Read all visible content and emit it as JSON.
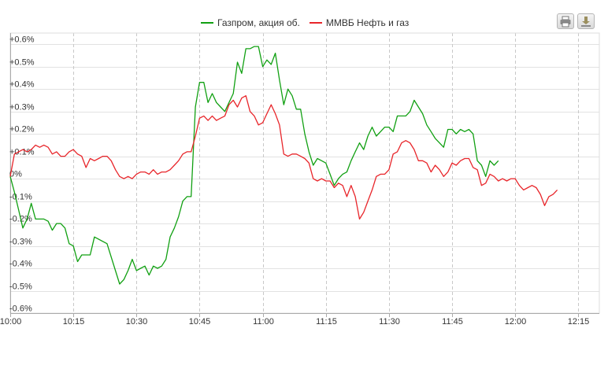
{
  "toolbar": {
    "print_icon": "printer-icon",
    "export_icon": "download-icon"
  },
  "chart_data": {
    "type": "line",
    "title": "",
    "xlabel": "",
    "ylabel": "",
    "ylim": [
      -0.6,
      0.65
    ],
    "xlim": [
      "10:00",
      "12:20"
    ],
    "grid": {
      "horizontal": true,
      "vertical_dashed": true
    },
    "legend_position": "top-center",
    "y_ticks": [
      "-0.6%",
      "-0.5%",
      "-0.4%",
      "-0.3%",
      "-0.2%",
      "-0.1%",
      "0%",
      "+0.1%",
      "+0.2%",
      "+0.3%",
      "+0.4%",
      "+0.5%",
      "+0.6%"
    ],
    "x_ticks": [
      "10:00",
      "10:15",
      "10:30",
      "10:45",
      "11:00",
      "11:15",
      "11:30",
      "11:45",
      "12:00",
      "12:15"
    ],
    "series": [
      {
        "name": "Газпром, акция об.",
        "color": "#11a012",
        "points": [
          [
            "10:00",
            0.01
          ],
          [
            "10:01",
            -0.06
          ],
          [
            "10:02",
            -0.14
          ],
          [
            "10:03",
            -0.22
          ],
          [
            "10:04",
            -0.18
          ],
          [
            "10:05",
            -0.11
          ],
          [
            "10:06",
            -0.18
          ],
          [
            "10:08",
            -0.18
          ],
          [
            "10:09",
            -0.19
          ],
          [
            "10:10",
            -0.23
          ],
          [
            "10:11",
            -0.2
          ],
          [
            "10:12",
            -0.2
          ],
          [
            "10:13",
            -0.22
          ],
          [
            "10:14",
            -0.29
          ],
          [
            "10:15",
            -0.3
          ],
          [
            "10:16",
            -0.37
          ],
          [
            "10:17",
            -0.34
          ],
          [
            "10:19",
            -0.34
          ],
          [
            "10:20",
            -0.26
          ],
          [
            "10:23",
            -0.29
          ],
          [
            "10:26",
            -0.47
          ],
          [
            "10:27",
            -0.45
          ],
          [
            "10:28",
            -0.41
          ],
          [
            "10:29",
            -0.36
          ],
          [
            "10:30",
            -0.41
          ],
          [
            "10:31",
            -0.4
          ],
          [
            "10:32",
            -0.39
          ],
          [
            "10:33",
            -0.43
          ],
          [
            "10:34",
            -0.39
          ],
          [
            "10:35",
            -0.4
          ],
          [
            "10:36",
            -0.39
          ],
          [
            "10:37",
            -0.36
          ],
          [
            "10:38",
            -0.26
          ],
          [
            "10:39",
            -0.22
          ],
          [
            "10:40",
            -0.17
          ],
          [
            "10:41",
            -0.1
          ],
          [
            "10:42",
            -0.08
          ],
          [
            "10:43",
            -0.08
          ],
          [
            "10:44",
            0.32
          ],
          [
            "10:45",
            0.43
          ],
          [
            "10:46",
            0.43
          ],
          [
            "10:47",
            0.34
          ],
          [
            "10:48",
            0.38
          ],
          [
            "10:49",
            0.34
          ],
          [
            "10:50",
            0.32
          ],
          [
            "10:51",
            0.3
          ],
          [
            "10:52",
            0.34
          ],
          [
            "10:53",
            0.38
          ],
          [
            "10:54",
            0.52
          ],
          [
            "10:55",
            0.47
          ],
          [
            "10:56",
            0.58
          ],
          [
            "10:57",
            0.58
          ],
          [
            "10:58",
            0.59
          ],
          [
            "10:59",
            0.59
          ],
          [
            "11:00",
            0.5
          ],
          [
            "11:01",
            0.53
          ],
          [
            "11:02",
            0.51
          ],
          [
            "11:03",
            0.56
          ],
          [
            "11:04",
            0.44
          ],
          [
            "11:05",
            0.33
          ],
          [
            "11:06",
            0.4
          ],
          [
            "11:07",
            0.37
          ],
          [
            "11:08",
            0.31
          ],
          [
            "11:09",
            0.31
          ],
          [
            "11:10",
            0.2
          ],
          [
            "11:11",
            0.12
          ],
          [
            "11:12",
            0.06
          ],
          [
            "11:13",
            0.09
          ],
          [
            "11:14",
            0.08
          ],
          [
            "11:15",
            0.07
          ],
          [
            "11:16",
            0.02
          ],
          [
            "11:17",
            -0.03
          ],
          [
            "11:18",
            0.0
          ],
          [
            "11:19",
            0.02
          ],
          [
            "11:20",
            0.03
          ],
          [
            "11:21",
            0.08
          ],
          [
            "11:22",
            0.12
          ],
          [
            "11:23",
            0.16
          ],
          [
            "11:24",
            0.13
          ],
          [
            "11:25",
            0.19
          ],
          [
            "11:26",
            0.23
          ],
          [
            "11:27",
            0.19
          ],
          [
            "11:28",
            0.21
          ],
          [
            "11:29",
            0.23
          ],
          [
            "11:30",
            0.23
          ],
          [
            "11:31",
            0.21
          ],
          [
            "11:32",
            0.28
          ],
          [
            "11:33",
            0.28
          ],
          [
            "11:34",
            0.28
          ],
          [
            "11:35",
            0.3
          ],
          [
            "11:36",
            0.35
          ],
          [
            "11:37",
            0.32
          ],
          [
            "11:38",
            0.29
          ],
          [
            "11:39",
            0.24
          ],
          [
            "11:40",
            0.21
          ],
          [
            "11:41",
            0.18
          ],
          [
            "11:42",
            0.16
          ],
          [
            "11:43",
            0.14
          ],
          [
            "11:44",
            0.22
          ],
          [
            "11:45",
            0.22
          ],
          [
            "11:46",
            0.2
          ],
          [
            "11:47",
            0.22
          ],
          [
            "11:48",
            0.21
          ],
          [
            "11:49",
            0.22
          ],
          [
            "11:50",
            0.2
          ],
          [
            "11:51",
            0.08
          ],
          [
            "11:52",
            0.06
          ],
          [
            "11:53",
            0.01
          ],
          [
            "11:54",
            0.08
          ],
          [
            "11:55",
            0.06
          ],
          [
            "11:56",
            0.08
          ]
        ]
      },
      {
        "name": "ММВБ Нефть и газ",
        "color": "#e8252a",
        "points": [
          [
            "10:00",
            0.01
          ],
          [
            "10:01",
            0.11
          ],
          [
            "10:02",
            0.12
          ],
          [
            "10:03",
            0.13
          ],
          [
            "10:04",
            0.12
          ],
          [
            "10:05",
            0.13
          ],
          [
            "10:06",
            0.15
          ],
          [
            "10:07",
            0.14
          ],
          [
            "10:08",
            0.15
          ],
          [
            "10:09",
            0.14
          ],
          [
            "10:10",
            0.11
          ],
          [
            "10:11",
            0.12
          ],
          [
            "10:12",
            0.1
          ],
          [
            "10:13",
            0.1
          ],
          [
            "10:14",
            0.12
          ],
          [
            "10:15",
            0.13
          ],
          [
            "10:16",
            0.11
          ],
          [
            "10:17",
            0.1
          ],
          [
            "10:18",
            0.05
          ],
          [
            "10:19",
            0.09
          ],
          [
            "10:20",
            0.08
          ],
          [
            "10:21",
            0.09
          ],
          [
            "10:22",
            0.1
          ],
          [
            "10:23",
            0.1
          ],
          [
            "10:24",
            0.08
          ],
          [
            "10:25",
            0.04
          ],
          [
            "10:26",
            0.01
          ],
          [
            "10:27",
            0.0
          ],
          [
            "10:28",
            0.01
          ],
          [
            "10:29",
            0.0
          ],
          [
            "10:30",
            0.02
          ],
          [
            "10:31",
            0.03
          ],
          [
            "10:32",
            0.03
          ],
          [
            "10:33",
            0.02
          ],
          [
            "10:34",
            0.04
          ],
          [
            "10:35",
            0.02
          ],
          [
            "10:36",
            0.03
          ],
          [
            "10:37",
            0.03
          ],
          [
            "10:38",
            0.04
          ],
          [
            "10:39",
            0.06
          ],
          [
            "10:40",
            0.08
          ],
          [
            "10:41",
            0.11
          ],
          [
            "10:42",
            0.12
          ],
          [
            "10:43",
            0.12
          ],
          [
            "10:44",
            0.19
          ],
          [
            "10:45",
            0.27
          ],
          [
            "10:46",
            0.28
          ],
          [
            "10:47",
            0.26
          ],
          [
            "10:48",
            0.28
          ],
          [
            "10:49",
            0.26
          ],
          [
            "10:50",
            0.27
          ],
          [
            "10:51",
            0.28
          ],
          [
            "10:52",
            0.33
          ],
          [
            "10:53",
            0.35
          ],
          [
            "10:54",
            0.32
          ],
          [
            "10:55",
            0.36
          ],
          [
            "10:56",
            0.37
          ],
          [
            "10:57",
            0.3
          ],
          [
            "10:58",
            0.28
          ],
          [
            "10:59",
            0.24
          ],
          [
            "11:00",
            0.25
          ],
          [
            "11:01",
            0.29
          ],
          [
            "11:02",
            0.33
          ],
          [
            "11:03",
            0.29
          ],
          [
            "11:04",
            0.24
          ],
          [
            "11:05",
            0.11
          ],
          [
            "11:06",
            0.1
          ],
          [
            "11:07",
            0.11
          ],
          [
            "11:08",
            0.11
          ],
          [
            "11:09",
            0.1
          ],
          [
            "11:10",
            0.09
          ],
          [
            "11:11",
            0.07
          ],
          [
            "11:12",
            0.0
          ],
          [
            "11:13",
            -0.01
          ],
          [
            "11:14",
            0.0
          ],
          [
            "11:15",
            -0.01
          ],
          [
            "11:16",
            -0.01
          ],
          [
            "11:17",
            -0.04
          ],
          [
            "11:18",
            -0.02
          ],
          [
            "11:19",
            -0.03
          ],
          [
            "11:20",
            -0.08
          ],
          [
            "11:21",
            -0.03
          ],
          [
            "11:22",
            -0.08
          ],
          [
            "11:23",
            -0.18
          ],
          [
            "11:24",
            -0.15
          ],
          [
            "11:25",
            -0.1
          ],
          [
            "11:26",
            -0.05
          ],
          [
            "11:27",
            0.01
          ],
          [
            "11:28",
            0.02
          ],
          [
            "11:29",
            0.02
          ],
          [
            "11:30",
            0.04
          ],
          [
            "11:31",
            0.11
          ],
          [
            "11:32",
            0.12
          ],
          [
            "11:33",
            0.16
          ],
          [
            "11:34",
            0.17
          ],
          [
            "11:35",
            0.16
          ],
          [
            "11:36",
            0.13
          ],
          [
            "11:37",
            0.08
          ],
          [
            "11:38",
            0.08
          ],
          [
            "11:39",
            0.07
          ],
          [
            "11:40",
            0.03
          ],
          [
            "11:41",
            0.06
          ],
          [
            "11:42",
            0.04
          ],
          [
            "11:43",
            0.01
          ],
          [
            "11:44",
            0.03
          ],
          [
            "11:45",
            0.07
          ],
          [
            "11:46",
            0.06
          ],
          [
            "11:47",
            0.08
          ],
          [
            "11:48",
            0.09
          ],
          [
            "11:49",
            0.09
          ],
          [
            "11:50",
            0.05
          ],
          [
            "11:51",
            0.04
          ],
          [
            "11:52",
            -0.03
          ],
          [
            "11:53",
            -0.02
          ],
          [
            "11:54",
            0.02
          ],
          [
            "11:55",
            0.01
          ],
          [
            "11:56",
            -0.01
          ],
          [
            "11:57",
            0.0
          ],
          [
            "11:58",
            -0.01
          ],
          [
            "11:59",
            0.0
          ],
          [
            "12:00",
            0.0
          ],
          [
            "12:01",
            -0.03
          ],
          [
            "12:02",
            -0.05
          ],
          [
            "12:03",
            -0.04
          ],
          [
            "12:04",
            -0.03
          ],
          [
            "12:05",
            -0.04
          ],
          [
            "12:06",
            -0.07
          ],
          [
            "12:07",
            -0.12
          ],
          [
            "12:08",
            -0.08
          ],
          [
            "12:09",
            -0.07
          ],
          [
            "12:10",
            -0.05
          ]
        ]
      }
    ]
  }
}
